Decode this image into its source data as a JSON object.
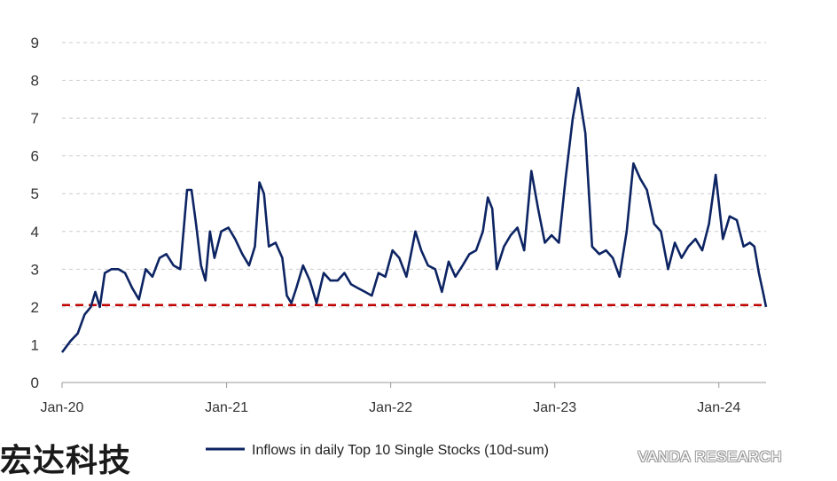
{
  "chart_data": {
    "type": "line",
    "title": "",
    "xlabel": "",
    "ylabel": "",
    "ylim": [
      0,
      9
    ],
    "y_ticks": [
      "0",
      "1",
      "2",
      "3",
      "4",
      "5",
      "6",
      "7",
      "8",
      "9"
    ],
    "x_ticks": [
      "Jan-20",
      "Jan-21",
      "Jan-22",
      "Jan-23",
      "Jan-24"
    ],
    "grid": "horizontal-dashed",
    "legend_position": "bottom",
    "series": [
      {
        "name": "Inflows in daily Top 10 Single Stocks (10d-sum)",
        "color": "#0d2463",
        "points": [
          [
            "2020-01-01",
            0.8
          ],
          [
            "2020-01-20",
            1.1
          ],
          [
            "2020-02-05",
            1.3
          ],
          [
            "2020-02-20",
            1.8
          ],
          [
            "2020-03-05",
            2.0
          ],
          [
            "2020-03-15",
            2.4
          ],
          [
            "2020-03-25",
            2.0
          ],
          [
            "2020-04-05",
            2.9
          ],
          [
            "2020-04-20",
            3.0
          ],
          [
            "2020-05-05",
            3.0
          ],
          [
            "2020-05-20",
            2.9
          ],
          [
            "2020-06-05",
            2.5
          ],
          [
            "2020-06-20",
            2.2
          ],
          [
            "2020-07-05",
            3.0
          ],
          [
            "2020-07-20",
            2.8
          ],
          [
            "2020-08-05",
            3.3
          ],
          [
            "2020-08-20",
            3.4
          ],
          [
            "2020-09-05",
            3.1
          ],
          [
            "2020-09-20",
            3.0
          ],
          [
            "2020-10-05",
            5.1
          ],
          [
            "2020-10-15",
            5.1
          ],
          [
            "2020-10-25",
            4.2
          ],
          [
            "2020-11-05",
            3.1
          ],
          [
            "2020-11-15",
            2.7
          ],
          [
            "2020-11-25",
            4.0
          ],
          [
            "2020-12-05",
            3.3
          ],
          [
            "2020-12-20",
            4.0
          ],
          [
            "2021-01-05",
            4.1
          ],
          [
            "2021-01-20",
            3.8
          ],
          [
            "2021-02-05",
            3.4
          ],
          [
            "2021-02-20",
            3.1
          ],
          [
            "2021-03-05",
            3.6
          ],
          [
            "2021-03-15",
            5.3
          ],
          [
            "2021-03-25",
            5.0
          ],
          [
            "2021-04-05",
            3.6
          ],
          [
            "2021-04-20",
            3.7
          ],
          [
            "2021-05-05",
            3.3
          ],
          [
            "2021-05-15",
            2.3
          ],
          [
            "2021-05-25",
            2.1
          ],
          [
            "2021-06-05",
            2.5
          ],
          [
            "2021-06-20",
            3.1
          ],
          [
            "2021-07-05",
            2.7
          ],
          [
            "2021-07-20",
            2.1
          ],
          [
            "2021-08-05",
            2.9
          ],
          [
            "2021-08-20",
            2.7
          ],
          [
            "2021-09-05",
            2.7
          ],
          [
            "2021-09-20",
            2.9
          ],
          [
            "2021-10-05",
            2.6
          ],
          [
            "2021-10-20",
            2.5
          ],
          [
            "2021-11-05",
            2.4
          ],
          [
            "2021-11-20",
            2.3
          ],
          [
            "2021-12-05",
            2.9
          ],
          [
            "2021-12-20",
            2.8
          ],
          [
            "2022-01-05",
            3.5
          ],
          [
            "2022-01-20",
            3.3
          ],
          [
            "2022-02-05",
            2.8
          ],
          [
            "2022-02-15",
            3.4
          ],
          [
            "2022-02-25",
            4.0
          ],
          [
            "2022-03-10",
            3.5
          ],
          [
            "2022-03-25",
            3.1
          ],
          [
            "2022-04-10",
            3.0
          ],
          [
            "2022-04-25",
            2.4
          ],
          [
            "2022-05-10",
            3.2
          ],
          [
            "2022-05-25",
            2.8
          ],
          [
            "2022-06-10",
            3.1
          ],
          [
            "2022-06-25",
            3.4
          ],
          [
            "2022-07-10",
            3.5
          ],
          [
            "2022-07-25",
            4.0
          ],
          [
            "2022-08-05",
            4.9
          ],
          [
            "2022-08-15",
            4.6
          ],
          [
            "2022-08-25",
            3.0
          ],
          [
            "2022-09-10",
            3.6
          ],
          [
            "2022-09-25",
            3.9
          ],
          [
            "2022-10-10",
            4.1
          ],
          [
            "2022-10-25",
            3.5
          ],
          [
            "2022-11-10",
            5.6
          ],
          [
            "2022-11-25",
            4.6
          ],
          [
            "2022-12-10",
            3.7
          ],
          [
            "2022-12-25",
            3.9
          ],
          [
            "2023-01-10",
            3.7
          ],
          [
            "2023-01-25",
            5.4
          ],
          [
            "2023-02-10",
            7.0
          ],
          [
            "2023-02-22",
            7.8
          ],
          [
            "2023-03-10",
            6.6
          ],
          [
            "2023-03-25",
            3.6
          ],
          [
            "2023-04-10",
            3.4
          ],
          [
            "2023-04-25",
            3.5
          ],
          [
            "2023-05-10",
            3.3
          ],
          [
            "2023-05-25",
            2.8
          ],
          [
            "2023-06-10",
            4.0
          ],
          [
            "2023-06-25",
            5.8
          ],
          [
            "2023-07-10",
            5.4
          ],
          [
            "2023-07-25",
            5.1
          ],
          [
            "2023-08-10",
            4.2
          ],
          [
            "2023-08-25",
            4.0
          ],
          [
            "2023-09-10",
            3.0
          ],
          [
            "2023-09-25",
            3.7
          ],
          [
            "2023-10-10",
            3.3
          ],
          [
            "2023-10-25",
            3.6
          ],
          [
            "2023-11-10",
            3.8
          ],
          [
            "2023-11-25",
            3.5
          ],
          [
            "2023-12-10",
            4.2
          ],
          [
            "2023-12-25",
            5.5
          ],
          [
            "2024-01-10",
            3.8
          ],
          [
            "2024-01-25",
            4.4
          ],
          [
            "2024-02-10",
            4.3
          ],
          [
            "2024-02-25",
            3.6
          ],
          [
            "2024-03-10",
            3.7
          ],
          [
            "2024-03-20",
            3.6
          ],
          [
            "2024-03-30",
            2.9
          ],
          [
            "2024-04-08",
            2.4
          ],
          [
            "2024-04-15",
            2.0
          ]
        ]
      }
    ],
    "reference_line": {
      "y": 2.05,
      "color": "#c00000",
      "style": "dashed"
    }
  },
  "watermark": {
    "left_text": "宏达科技",
    "right_text": "VANDA RESEARCH"
  },
  "colors": {
    "grid": "#cccccc",
    "axis": "#999999"
  }
}
